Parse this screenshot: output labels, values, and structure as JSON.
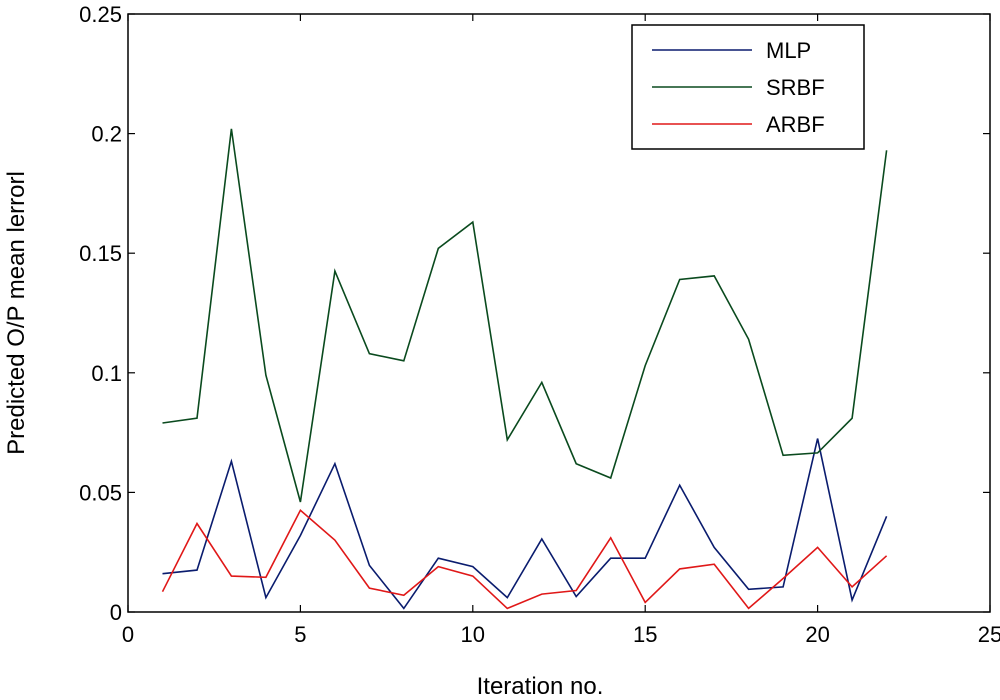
{
  "chart_data": {
    "type": "line",
    "title": "",
    "xlabel": "Iteration no.",
    "ylabel": "Predicted O/P mean lerrorl",
    "xlim": [
      0,
      25
    ],
    "ylim": [
      0,
      0.25
    ],
    "xticks": [
      0,
      5,
      10,
      15,
      20,
      25
    ],
    "yticks": [
      0,
      0.05,
      0.1,
      0.15,
      0.2,
      0.25
    ],
    "xtick_labels": [
      "0",
      "5",
      "10",
      "15",
      "20",
      "25"
    ],
    "ytick_labels": [
      "0",
      "0.05",
      "0.1",
      "0.15",
      "0.2",
      "0.25"
    ],
    "grid": false,
    "legend_position": "top-right",
    "x": [
      1,
      2,
      3,
      4,
      5,
      6,
      7,
      8,
      9,
      10,
      11,
      12,
      13,
      14,
      15,
      16,
      17,
      18,
      19,
      20,
      21,
      22
    ],
    "series": [
      {
        "name": "MLP",
        "color": "#0a1c6e",
        "values": [
          0.016,
          0.0175,
          0.063,
          0.006,
          0.032,
          0.062,
          0.0195,
          0.0015,
          0.0225,
          0.019,
          0.006,
          0.0305,
          0.0065,
          0.0225,
          0.0225,
          0.053,
          0.027,
          0.0095,
          0.0105,
          0.0725,
          0.005,
          0.04
        ]
      },
      {
        "name": "SRBF",
        "color": "#0a4a1e",
        "values": [
          0.079,
          0.081,
          0.202,
          0.099,
          0.046,
          0.1425,
          0.108,
          0.105,
          0.152,
          0.163,
          0.072,
          0.096,
          0.062,
          0.056,
          0.103,
          0.139,
          0.1405,
          0.114,
          0.0655,
          0.0665,
          0.081,
          0.193
        ]
      },
      {
        "name": "ARBF",
        "color": "#e01818",
        "values": [
          0.0085,
          0.037,
          0.015,
          0.0145,
          0.0425,
          0.03,
          0.01,
          0.007,
          0.019,
          0.015,
          0.0015,
          0.0075,
          0.009,
          0.031,
          0.004,
          0.018,
          0.02,
          0.0015,
          0.014,
          0.027,
          0.0105,
          0.0235
        ]
      }
    ]
  }
}
